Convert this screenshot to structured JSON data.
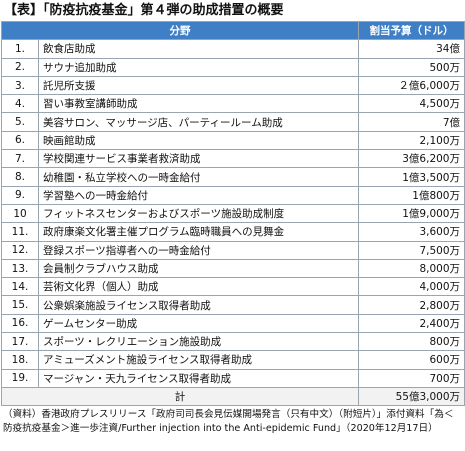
{
  "title": "【表】「防疫抗疫基金」第４弾の助成措置の概要",
  "table": {
    "header": [
      "分野",
      "割当予算（ドル）"
    ],
    "rows": [
      [
        "1.",
        "飲食店助成",
        "34億"
      ],
      [
        "2.",
        "サウナ追加助成",
        "500万"
      ],
      [
        "3.",
        "託児所支援",
        "２億6,000万"
      ],
      [
        "4.",
        "習い事教室講師助成",
        "4,500万"
      ],
      [
        "5.",
        "美容サロン、マッサージ店、パーティールーム助成",
        "7億"
      ],
      [
        "6.",
        "映画館助成",
        "2,100万"
      ],
      [
        "7.",
        "学校関連サービス事業者救済助成",
        "3億6,200万"
      ],
      [
        "8.",
        "幼稚園・私立学校への一時金給付",
        "1億3,500万"
      ],
      [
        "9.",
        "学習塾への一時金給付",
        "1億800万"
      ],
      [
        "10",
        "フィットネスセンターおよびスポーツ施設助成制度",
        "1億9,000万"
      ],
      [
        "11.",
        "政府康楽文化署主催プログラム臨時職員への見舞金",
        "3,600万"
      ],
      [
        "12.",
        "登録スポーツ指導者への一時金給付",
        "7,500万"
      ],
      [
        "13.",
        "会員制クラブハウス助成",
        "8,000万"
      ],
      [
        "14.",
        "芸術文化界（個人）助成",
        "4,000万"
      ],
      [
        "15.",
        "公衆娯楽施設ライセンス取得者助成",
        "2,800万"
      ],
      [
        "16.",
        "ゲームセンター助成",
        "2,400万"
      ],
      [
        "17.",
        "スポーツ・レクリエーション施設助成",
        "800万"
      ],
      [
        "18.",
        "アミューズメント施設ライセンス取得者助成",
        "600万"
      ],
      [
        "19.",
        "マージャン・天九ライセンス取得者助成",
        "700万"
      ]
    ],
    "total": [
      "計",
      "55億3,000万"
    ]
  },
  "footnote": "（資料）香港政府プレスリリース「政府司司長会見伝媒開場発言（只有中文）（附短片）」添付資料「為＜防疫抗疫基金＞進一歩注資/Further injection into the Anti-epidemic Fund」（2020年12月17日）"
}
